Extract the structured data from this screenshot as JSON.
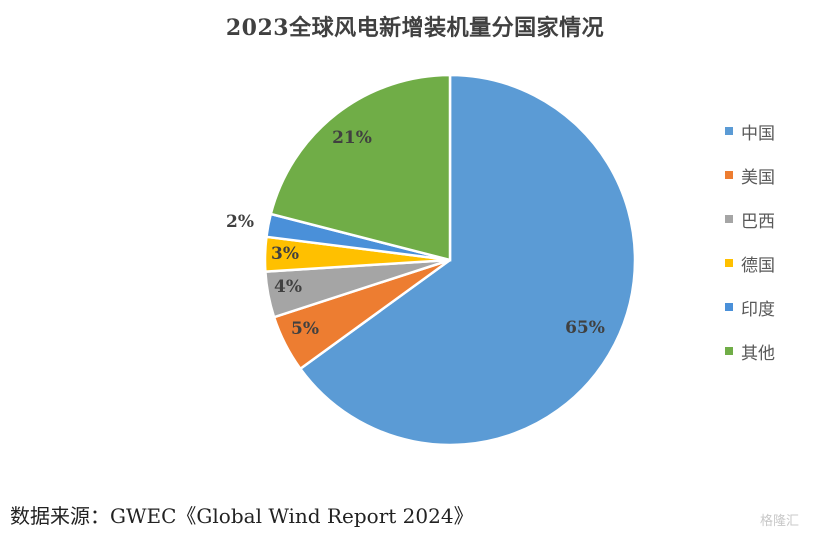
{
  "chart_data": {
    "type": "pie",
    "title": "2023全球风电新增装机量分国家情况",
    "slices": [
      {
        "label": "中国",
        "value": 65,
        "display": "65%",
        "color": "#5B9BD5"
      },
      {
        "label": "美国",
        "value": 5,
        "display": "5%",
        "color": "#ED7D31"
      },
      {
        "label": "巴西",
        "value": 4,
        "display": "4%",
        "color": "#A5A5A5"
      },
      {
        "label": "德国",
        "value": 3,
        "display": "3%",
        "color": "#FFC000"
      },
      {
        "label": "印度",
        "value": 2,
        "display": "2%",
        "color": "#4A90D9"
      },
      {
        "label": "其他",
        "value": 21,
        "display": "21%",
        "color": "#70AD47"
      }
    ],
    "legend_position": "right"
  },
  "source": "数据来源：GWEC《Global Wind Report 2024》",
  "watermark": "格隆汇"
}
